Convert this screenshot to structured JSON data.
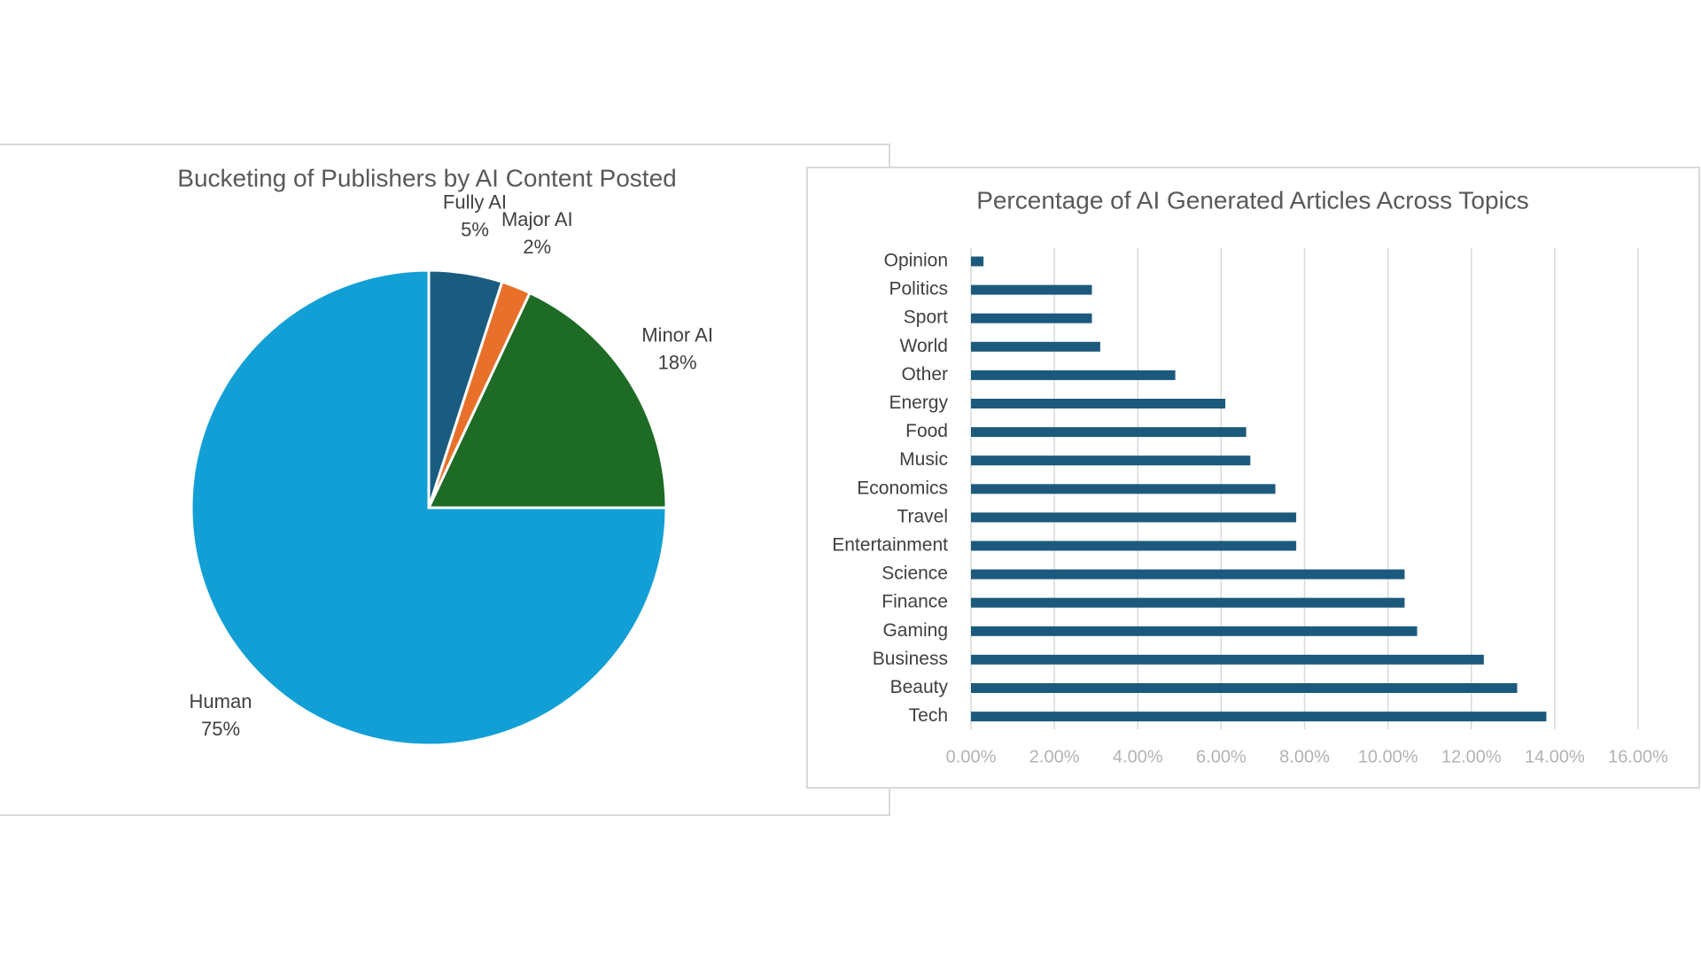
{
  "chart_data": [
    {
      "type": "pie",
      "title": "Bucketing of Publishers by AI Content Posted",
      "categories": [
        "Fully AI",
        "Major AI",
        "Minor AI",
        "Human"
      ],
      "values": [
        5,
        2,
        18,
        75
      ],
      "value_labels": [
        "5%",
        "2%",
        "18%",
        "75%"
      ],
      "colors": [
        "#1a5c80",
        "#e8702a",
        "#1e6b25",
        "#129fd6"
      ]
    },
    {
      "type": "barh",
      "title": "Percentage of AI Generated Articles Across Topics",
      "categories": [
        "Opinion",
        "Politics",
        "Sport",
        "World",
        "Other",
        "Energy",
        "Food",
        "Music",
        "Economics",
        "Travel",
        "Entertainment",
        "Science",
        "Finance",
        "Gaming",
        "Business",
        "Beauty",
        "Tech"
      ],
      "values": [
        0.3,
        2.9,
        2.9,
        3.1,
        4.9,
        6.1,
        6.6,
        6.7,
        7.3,
        7.8,
        7.8,
        10.4,
        10.4,
        10.7,
        12.3,
        13.1,
        13.8
      ],
      "color": "#1c5a7d",
      "xlim": [
        0,
        16
      ],
      "xticks": [
        {
          "value": 0,
          "label": "0.00%"
        },
        {
          "value": 2,
          "label": "2.00%"
        },
        {
          "value": 4,
          "label": "4.00%"
        },
        {
          "value": 6,
          "label": "6.00%"
        },
        {
          "value": 8,
          "label": "8.00%"
        },
        {
          "value": 10,
          "label": "10.00%"
        },
        {
          "value": 12,
          "label": "12.00%"
        },
        {
          "value": 14,
          "label": "14.00%"
        },
        {
          "value": 16,
          "label": "16.00%"
        }
      ],
      "grid": true
    }
  ]
}
